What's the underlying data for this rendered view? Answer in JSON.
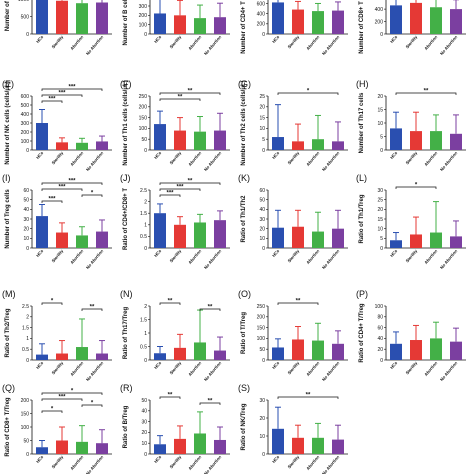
{
  "colors": {
    "HCs": "#2a4fb0",
    "Sterility": "#e53935",
    "Abortion": "#43b047",
    "No Abortion": "#7b3fa0"
  },
  "chart_data": [
    {
      "type": "bar",
      "panel": "",
      "ylabel": "Number of T cells",
      "ylim": [
        0,
        1600
      ],
      "yticks": [
        0,
        500,
        1000,
        1500
      ],
      "categories": [
        "HCs",
        "Sterility",
        "Abortion",
        "No Abortion"
      ],
      "values": [
        1180,
        950,
        880,
        900
      ],
      "errors": [
        450,
        300,
        320,
        330
      ],
      "sig": [
        {
          "from": 0,
          "to": 1,
          "label": "**"
        },
        {
          "from": 0,
          "to": 2,
          "label": "***"
        }
      ]
    },
    {
      "type": "bar",
      "panel": "",
      "ylabel": "Number of B cells (cells/μL)",
      "ylim": [
        0,
        600
      ],
      "yticks": [
        0,
        100,
        200,
        300,
        400,
        500
      ],
      "categories": [
        "HCs",
        "Sterility",
        "Abortion",
        "No Abortion"
      ],
      "values": [
        220,
        200,
        170,
        180
      ],
      "errors": [
        150,
        160,
        140,
        150
      ],
      "sig": [
        {
          "from": 0,
          "to": 3,
          "label": ""
        }
      ]
    },
    {
      "type": "bar",
      "panel": "",
      "ylabel": "Number of CD4+ T cells (cells/μL)",
      "ylim": [
        0,
        1100
      ],
      "yticks": [
        0,
        200,
        400,
        600,
        800,
        1000
      ],
      "categories": [
        "HCs",
        "Sterility",
        "Abortion",
        "No Abortion"
      ],
      "values": [
        620,
        480,
        450,
        460
      ],
      "errors": [
        250,
        160,
        150,
        170
      ],
      "sig": [
        {
          "from": 0,
          "to": 1,
          "label": "***"
        },
        {
          "from": 0,
          "to": 2,
          "label": "***"
        }
      ]
    },
    {
      "type": "bar",
      "panel": "",
      "ylabel": "Number of CD8+ T cells (cells/μL)",
      "ylim": [
        0,
        900
      ],
      "yticks": [
        0,
        200,
        400,
        600,
        800
      ],
      "categories": [
        "HCs",
        "Sterility",
        "Abortion",
        "No Abortion"
      ],
      "values": [
        460,
        500,
        430,
        400
      ],
      "errors": [
        160,
        220,
        170,
        150
      ],
      "sig": [
        {
          "from": 0,
          "to": 3,
          "label": "*"
        },
        {
          "from": 1,
          "to": 3,
          "label": "*"
        },
        {
          "from": 1,
          "to": 2,
          "label": "*"
        }
      ]
    },
    {
      "type": "bar",
      "panel": "(E)",
      "ylabel": "Number of NK cells (cells/μL)",
      "ylim": [
        0,
        600
      ],
      "yticks": [
        0,
        100,
        200,
        300,
        400,
        500,
        600
      ],
      "categories": [
        "HCs",
        "Sterility",
        "Abortion",
        "No Abortion"
      ],
      "values": [
        300,
        85,
        80,
        95
      ],
      "errors": [
        150,
        50,
        50,
        60
      ],
      "sig": [
        {
          "from": 0,
          "to": 3,
          "label": "***"
        },
        {
          "from": 0,
          "to": 2,
          "label": "***"
        },
        {
          "from": 0,
          "to": 1,
          "label": "***"
        }
      ]
    },
    {
      "type": "bar",
      "panel": "(F)",
      "ylabel": "Number of Th1 cells (cells/μL)",
      "ylim": [
        0,
        250
      ],
      "yticks": [
        0,
        50,
        100,
        150,
        200,
        250
      ],
      "categories": [
        "HCs",
        "Sterility",
        "Abortion",
        "No Abortion"
      ],
      "values": [
        120,
        90,
        85,
        90
      ],
      "errors": [
        60,
        60,
        70,
        80
      ],
      "sig": [
        {
          "from": 0,
          "to": 3,
          "label": "**"
        },
        {
          "from": 0,
          "to": 2,
          "label": "**"
        }
      ]
    },
    {
      "type": "bar",
      "panel": "(G)",
      "ylabel": "Number of Th2 cells (cells/μL)",
      "ylim": [
        0,
        25
      ],
      "yticks": [
        0,
        5,
        10,
        15,
        20,
        25
      ],
      "categories": [
        "HCs",
        "Sterility",
        "Abortion",
        "No Abortion"
      ],
      "values": [
        6,
        4,
        5,
        4
      ],
      "errors": [
        15,
        8,
        11,
        9
      ],
      "sig": [
        {
          "from": 0,
          "to": 3,
          "label": "*"
        }
      ]
    },
    {
      "type": "bar",
      "panel": "(H)",
      "ylabel": "Number of Th17 cells",
      "ylim": [
        0,
        20
      ],
      "yticks": [
        0,
        5,
        10,
        15,
        20
      ],
      "categories": [
        "HCs",
        "Sterility",
        "Abortion",
        "No Abortion"
      ],
      "values": [
        8,
        7,
        7,
        6
      ],
      "errors": [
        6,
        7,
        6,
        7
      ],
      "sig": [
        {
          "from": 0,
          "to": 3,
          "label": "**"
        }
      ]
    },
    {
      "type": "bar",
      "panel": "(I)",
      "ylabel": "Number of Treg cells",
      "ylim": [
        0,
        60
      ],
      "yticks": [
        0,
        10,
        20,
        30,
        40,
        50,
        60
      ],
      "categories": [
        "HCs",
        "Sterility",
        "Abortion",
        "No Abortion"
      ],
      "values": [
        33,
        16,
        13,
        17
      ],
      "errors": [
        12,
        10,
        9,
        12
      ],
      "sig": [
        {
          "from": 0,
          "to": 3,
          "label": "***"
        },
        {
          "from": 0,
          "to": 2,
          "label": "***"
        },
        {
          "from": 2,
          "to": 3,
          "label": "*"
        },
        {
          "from": 0,
          "to": 1,
          "label": "***"
        }
      ]
    },
    {
      "type": "bar",
      "panel": "(J)",
      "ylabel": "Ratio of CD4+/CD8+ T",
      "ylim": [
        0,
        2.5
      ],
      "yticks": [
        0,
        0.5,
        1.0,
        1.5,
        2.0,
        2.5
      ],
      "categories": [
        "HCs",
        "Sterility",
        "Abortion",
        "No Abortion"
      ],
      "values": [
        1.5,
        1.0,
        1.1,
        1.2
      ],
      "errors": [
        0.4,
        0.35,
        0.35,
        0.4
      ],
      "sig": [
        {
          "from": 0,
          "to": 3,
          "label": "**"
        },
        {
          "from": 0,
          "to": 2,
          "label": "***"
        },
        {
          "from": 0,
          "to": 1,
          "label": "***"
        }
      ]
    },
    {
      "type": "bar",
      "panel": "(K)",
      "ylabel": "Ratio of Th1/Th2",
      "ylim": [
        0,
        60
      ],
      "yticks": [
        0,
        10,
        20,
        30,
        40,
        50,
        60
      ],
      "categories": [
        "HCs",
        "Sterility",
        "Abortion",
        "No Abortion"
      ],
      "values": [
        21,
        22,
        17,
        20
      ],
      "errors": [
        18,
        17,
        20,
        19
      ],
      "sig": []
    },
    {
      "type": "bar",
      "panel": "(L)",
      "ylabel": "Ratio of Th1/Treg",
      "ylim": [
        0,
        30
      ],
      "yticks": [
        0,
        5,
        10,
        15,
        20,
        25,
        30
      ],
      "categories": [
        "HCs",
        "Sterility",
        "Abortion",
        "No Abortion"
      ],
      "values": [
        4,
        7,
        8,
        6
      ],
      "errors": [
        4,
        9,
        16,
        8
      ],
      "sig": [
        {
          "from": 0,
          "to": 2,
          "label": "*"
        }
      ]
    },
    {
      "type": "bar",
      "panel": "(M)",
      "ylabel": "Ratio of Th2/Treg",
      "ylim": [
        0,
        2.5
      ],
      "yticks": [
        0,
        0.5,
        1.0,
        1.5,
        2.0,
        2.5
      ],
      "categories": [
        "HCs",
        "Sterility",
        "Abortion",
        "No Abortion"
      ],
      "values": [
        0.25,
        0.3,
        0.6,
        0.3
      ],
      "errors": [
        0.5,
        0.6,
        1.3,
        0.6
      ],
      "sig": [
        {
          "from": 0,
          "to": 1,
          "label": "*"
        },
        {
          "from": 2,
          "to": 3,
          "label": "**"
        }
      ]
    },
    {
      "type": "bar",
      "panel": "(N)",
      "ylabel": "Ratio of Th17/Treg",
      "ylim": [
        0,
        2.0
      ],
      "yticks": [
        0,
        0.5,
        1.0,
        1.5,
        2.0
      ],
      "categories": [
        "HCs",
        "Sterility",
        "Abortion",
        "No Abortion"
      ],
      "values": [
        0.25,
        0.45,
        0.65,
        0.35
      ],
      "errors": [
        0.25,
        0.5,
        1.2,
        0.5
      ],
      "sig": [
        {
          "from": 0,
          "to": 1,
          "label": "**"
        },
        {
          "from": 2,
          "to": 3,
          "label": "**"
        }
      ]
    },
    {
      "type": "bar",
      "panel": "(O)",
      "ylabel": "Ratio of T/Treg",
      "ylim": [
        0,
        250
      ],
      "yticks": [
        0,
        50,
        100,
        150,
        200,
        250
      ],
      "categories": [
        "HCs",
        "Sterility",
        "Abortion",
        "No Abortion"
      ],
      "values": [
        58,
        95,
        90,
        75
      ],
      "errors": [
        40,
        60,
        80,
        60
      ],
      "sig": [
        {
          "from": 0,
          "to": 2,
          "label": "**"
        }
      ]
    },
    {
      "type": "bar",
      "panel": "(P)",
      "ylabel": "Ratio of CD4+ T/Treg",
      "ylim": [
        0,
        100
      ],
      "yticks": [
        0,
        20,
        40,
        60,
        80,
        100
      ],
      "categories": [
        "HCs",
        "Sterility",
        "Abortion",
        "No Abortion"
      ],
      "values": [
        30,
        37,
        40,
        34
      ],
      "errors": [
        22,
        27,
        30,
        25
      ],
      "sig": []
    },
    {
      "type": "bar",
      "panel": "(Q)",
      "ylabel": "Ratio of CD8+ T/Treg",
      "ylim": [
        0,
        200
      ],
      "yticks": [
        0,
        50,
        100,
        150,
        200
      ],
      "categories": [
        "HCs",
        "Sterility",
        "Abortion",
        "No Abortion"
      ],
      "values": [
        25,
        50,
        45,
        40
      ],
      "errors": [
        25,
        50,
        60,
        50
      ],
      "sig": [
        {
          "from": 0,
          "to": 3,
          "label": "*"
        },
        {
          "from": 0,
          "to": 2,
          "label": "***"
        },
        {
          "from": 2,
          "to": 3,
          "label": "*"
        },
        {
          "from": 0,
          "to": 1,
          "label": "*"
        }
      ]
    },
    {
      "type": "bar",
      "panel": "(R)",
      "ylabel": "Ratio of B/Treg",
      "ylim": [
        0,
        50
      ],
      "yticks": [
        0,
        10,
        20,
        30,
        40,
        50
      ],
      "categories": [
        "HCs",
        "Sterility",
        "Abortion",
        "No Abortion"
      ],
      "values": [
        9,
        14,
        19,
        13
      ],
      "errors": [
        8,
        12,
        20,
        12
      ],
      "sig": [
        {
          "from": 0,
          "to": 1,
          "label": "**"
        },
        {
          "from": 2,
          "to": 3,
          "label": "**"
        }
      ]
    },
    {
      "type": "bar",
      "panel": "(S)",
      "ylabel": "Ratio of NK/Treg",
      "ylim": [
        0,
        30
      ],
      "yticks": [
        0,
        10,
        20,
        30
      ],
      "categories": [
        "HCs",
        "Sterility",
        "Abortion",
        "No Abortion"
      ],
      "values": [
        14,
        9,
        9,
        8
      ],
      "errors": [
        12,
        7,
        8,
        8
      ],
      "sig": [
        {
          "from": 0,
          "to": 3,
          "label": "**"
        }
      ]
    }
  ]
}
